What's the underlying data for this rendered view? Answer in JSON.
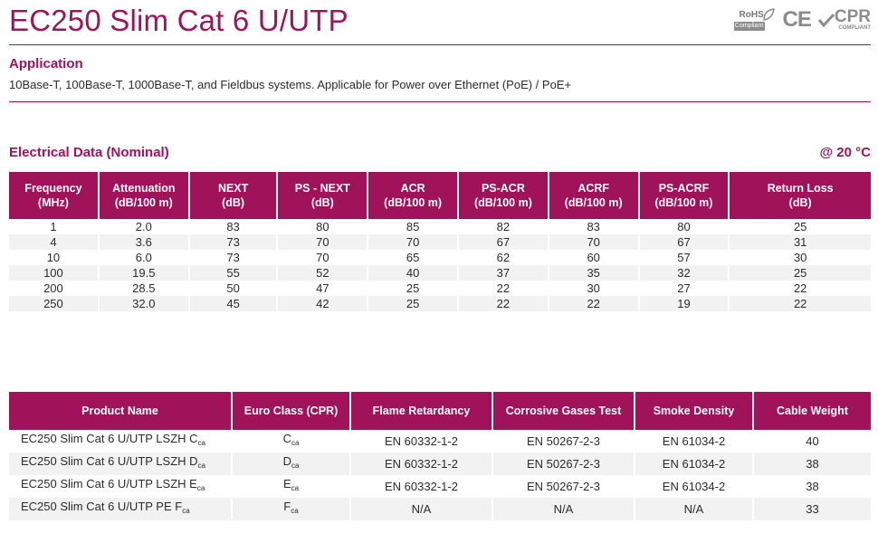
{
  "title": "EC250 Slim Cat 6 U/UTP",
  "logos": {
    "rohs_text": "RoHS",
    "rohs_tag": "Compliant",
    "ce": "CE",
    "cpr": "CPR",
    "cpr_sub": "COMPLIANT"
  },
  "application": {
    "heading": "Application",
    "text": "10Base-T, 100Base-T, 1000Base-T, and Fieldbus systems. Applicable for Power over Ethernet (PoE) / PoE+"
  },
  "electrical": {
    "heading": "Electrical Data (Nominal)",
    "temperature": "@ 20 °C",
    "headers": [
      [
        "Frequency",
        "(MHz)"
      ],
      [
        "Attenuation",
        "(dB/100 m)"
      ],
      [
        "NEXT",
        "(dB)"
      ],
      [
        "PS - NEXT",
        "(dB)"
      ],
      [
        "ACR",
        "(dB/100 m)"
      ],
      [
        "PS-ACR",
        "(dB/100 m)"
      ],
      [
        "ACRF",
        "(dB/100 m)"
      ],
      [
        "PS-ACRF",
        "(dB/100 m)"
      ],
      [
        "Return Loss",
        "(dB)"
      ]
    ],
    "rows": [
      [
        "1",
        "2.0",
        "83",
        "80",
        "85",
        "82",
        "83",
        "80",
        "25"
      ],
      [
        "4",
        "3.6",
        "73",
        "70",
        "70",
        "67",
        "70",
        "67",
        "31"
      ],
      [
        "10",
        "6.0",
        "73",
        "70",
        "65",
        "62",
        "60",
        "57",
        "30"
      ],
      [
        "100",
        "19.5",
        "55",
        "52",
        "40",
        "37",
        "35",
        "32",
        "25"
      ],
      [
        "200",
        "28.5",
        "50",
        "47",
        "25",
        "22",
        "30",
        "27",
        "22"
      ],
      [
        "250",
        "32.0",
        "45",
        "42",
        "25",
        "22",
        "22",
        "19",
        "22"
      ]
    ]
  },
  "products": {
    "headers": [
      "Product Name",
      "Euro Class (CPR)",
      "Flame Retardancy",
      "Corrosive Gases Test",
      "Smoke Density",
      "Cable Weight"
    ],
    "rows": [
      {
        "name": "EC250 Slim Cat 6 U/UTP LSZH C",
        "name_sub": "ca",
        "class": "C",
        "class_sub": "ca",
        "flame": "EN 60332-1-2",
        "gases": "EN 50267-2-3",
        "smoke": "EN 61034-2",
        "weight": "40"
      },
      {
        "name": "EC250 Slim Cat 6 U/UTP LSZH D",
        "name_sub": "ca",
        "class": "D",
        "class_sub": "ca",
        "flame": "EN 60332-1-2",
        "gases": "EN 50267-2-3",
        "smoke": "EN 61034-2",
        "weight": "38"
      },
      {
        "name": "EC250 Slim Cat 6 U/UTP LSZH E",
        "name_sub": "ca",
        "class": "E",
        "class_sub": "ca",
        "flame": "EN 60332-1-2",
        "gases": "EN 50267-2-3",
        "smoke": "EN 61034-2",
        "weight": "38"
      },
      {
        "name": "EC250 Slim Cat 6 U/UTP PE F",
        "name_sub": "ca",
        "class": "F",
        "class_sub": "ca",
        "flame": "N/A",
        "gases": "N/A",
        "smoke": "N/A",
        "weight": "33"
      }
    ]
  }
}
